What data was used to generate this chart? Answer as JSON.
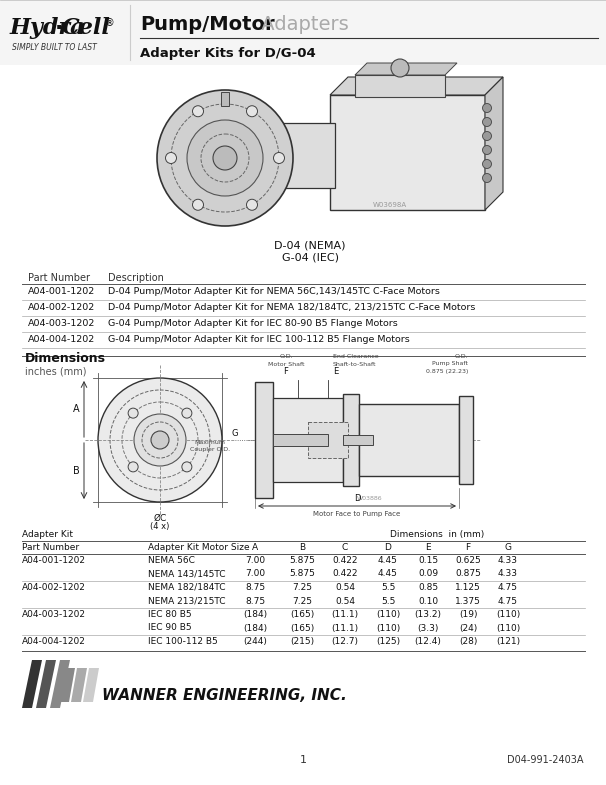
{
  "bg_color": "#ffffff",
  "title_pump_motor": "Pump/Motor",
  "title_adapters": " Adapters",
  "title_sub": "Adapter Kits for D/G-04",
  "part_table_rows": [
    [
      "A04-001-1202",
      "D-04 Pump/Motor Adapter Kit for NEMA 56C,143/145TC C-Face Motors"
    ],
    [
      "A04-002-1202",
      "D-04 Pump/Motor Adapter Kit for NEMA 182/184TC, 213/215TC C-Face Motors"
    ],
    [
      "A04-003-1202",
      "G-04 Pump/Motor Adapter Kit for IEC 80-90 B5 Flange Motors"
    ],
    [
      "A04-004-1202",
      "G-04 Pump/Motor Adapter Kit for IEC 100-112 B5 Flange Motors"
    ]
  ],
  "dim_header_row2": [
    "Part Number",
    "Adapter Kit Motor Size",
    "A",
    "B",
    "C",
    "D",
    "E",
    "F",
    "G"
  ],
  "dim_rows": [
    [
      "A04-001-1202",
      "NEMA 56C",
      "7.00",
      "5.875",
      "0.422",
      "4.45",
      "0.15",
      "0.625",
      "4.33"
    ],
    [
      "",
      "NEMA 143/145TC",
      "7.00",
      "5.875",
      "0.422",
      "4.45",
      "0.09",
      "0.875",
      "4.33"
    ],
    [
      "A04-002-1202",
      "NEMA 182/184TC",
      "8.75",
      "7.25",
      "0.54",
      "5.5",
      "0.85",
      "1.125",
      "4.75"
    ],
    [
      "",
      "NEMA 213/215TC",
      "8.75",
      "7.25",
      "0.54",
      "5.5",
      "0.10",
      "1.375",
      "4.75"
    ],
    [
      "A04-003-1202",
      "IEC 80 B5",
      "(184)",
      "(165)",
      "(11.1)",
      "(110)",
      "(13.2)",
      "(19)",
      "(110)"
    ],
    [
      "",
      "IEC 90 B5",
      "(184)",
      "(165)",
      "(11.1)",
      "(110)",
      "(3.3)",
      "(24)",
      "(110)"
    ],
    [
      "A04-004-1202",
      "IEC 100-112 B5",
      "(244)",
      "(215)",
      "(12.7)",
      "(125)",
      "(12.4)",
      "(28)",
      "(121)"
    ]
  ],
  "footer_page": "1",
  "footer_doc": "D04-991-2403A",
  "wanner_name": "WANNER ENGINEERING, INC."
}
